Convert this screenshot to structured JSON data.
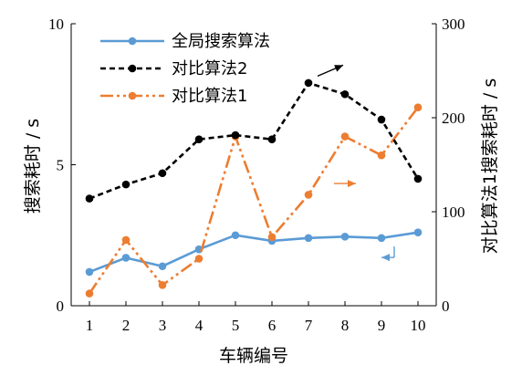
{
  "chart_data": {
    "type": "line",
    "xlabel": "车辆编号",
    "ylabel_left": "搜索耗时 / s",
    "ylabel_right": "对比算法1搜索耗时 / s",
    "categories": [
      "1",
      "2",
      "3",
      "4",
      "5",
      "6",
      "7",
      "8",
      "9",
      "10"
    ],
    "x_ticks": [
      "1",
      "2",
      "3",
      "4",
      "5",
      "6",
      "7",
      "8",
      "9",
      "10"
    ],
    "ylim_left": [
      0,
      10
    ],
    "ylim_right": [
      0,
      300
    ],
    "yticks_left": [
      "0",
      "5",
      "10"
    ],
    "yticks_right": [
      "0",
      "100",
      "200",
      "300"
    ],
    "grid": false,
    "legend_position": "top-left",
    "series": [
      {
        "name": "全局搜索算法",
        "axis": "left",
        "color": "#5b9bd5",
        "style": "solid",
        "values": [
          1.2,
          1.7,
          1.4,
          2.0,
          2.5,
          2.3,
          2.4,
          2.45,
          2.4,
          2.6
        ]
      },
      {
        "name": "对比算法2",
        "axis": "left",
        "color": "#000000",
        "style": "dashed",
        "values": [
          3.8,
          4.3,
          4.7,
          5.9,
          6.05,
          5.9,
          7.9,
          7.5,
          6.6,
          4.5
        ]
      },
      {
        "name": "对比算法1",
        "axis": "right",
        "color": "#ed7d31",
        "style": "dashdotdot",
        "values": [
          13,
          70,
          22,
          50,
          180,
          73,
          118,
          180,
          160,
          211
        ]
      }
    ],
    "annotations": [
      {
        "type": "arrow",
        "series": "对比算法2",
        "direction": "up-right"
      },
      {
        "type": "arrow",
        "series": "对比算法1",
        "direction": "right"
      },
      {
        "type": "arrow",
        "series": "全局搜索算法",
        "direction": "down-left"
      }
    ]
  }
}
